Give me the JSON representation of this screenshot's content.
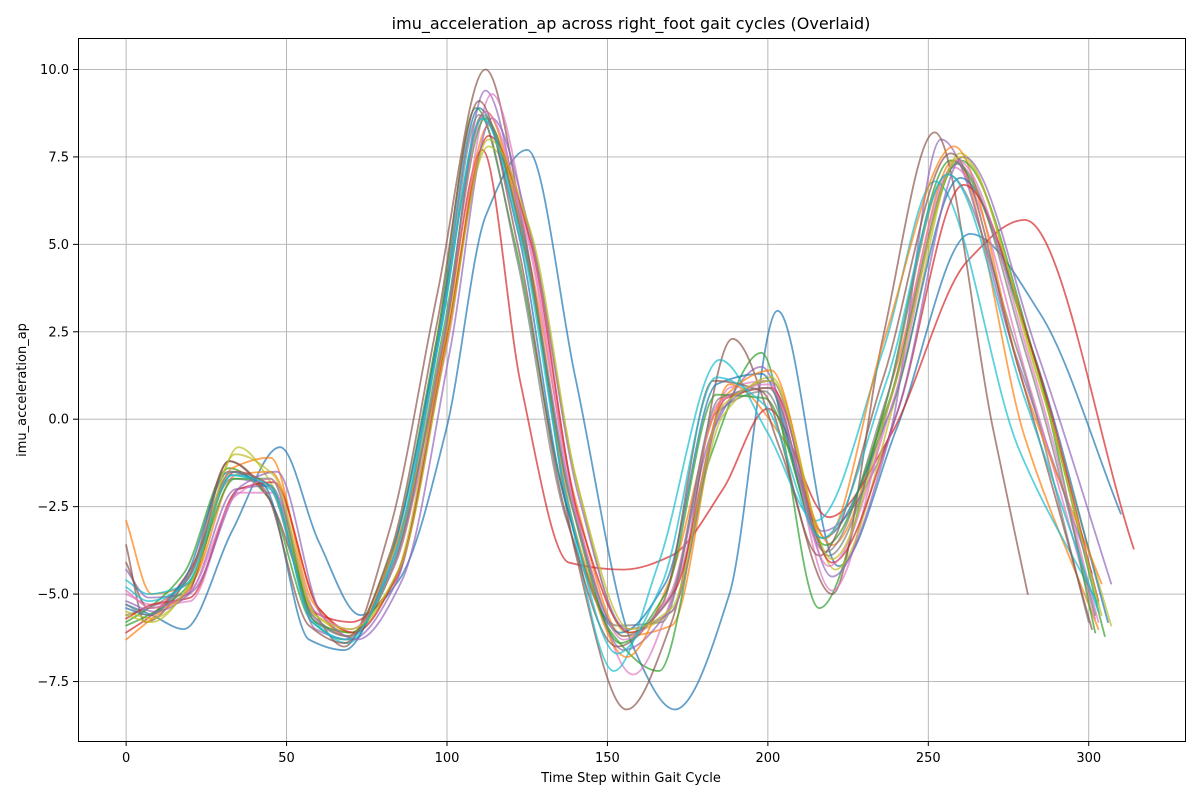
{
  "chart_data": {
    "type": "line",
    "title": "imu_acceleration_ap across right_foot gait cycles (Overlaid)",
    "xlabel": "Time Step within Gait Cycle",
    "ylabel": "imu_acceleration_ap",
    "xlim": [
      -15,
      330
    ],
    "ylim": [
      -9.2,
      10.9
    ],
    "xticks": [
      0,
      50,
      100,
      150,
      200,
      250,
      300
    ],
    "yticks": [
      -7.5,
      -5.0,
      -2.5,
      0.0,
      2.5,
      5.0,
      7.5,
      10.0
    ],
    "xtick_labels": [
      "0",
      "50",
      "100",
      "150",
      "200",
      "250",
      "300"
    ],
    "ytick_labels": [
      "−7.5",
      "−5.0",
      "−2.5",
      "0.0",
      "2.5",
      "5.0",
      "7.5",
      "10.0"
    ],
    "grid": true,
    "legend": "none",
    "series": [
      {
        "color": "#1f77b4",
        "x": [
          0,
          8,
          18,
          33,
          48,
          60,
          73,
          85,
          100,
          112,
          125,
          140,
          158,
          171,
          188,
          203,
          222,
          240,
          263,
          285,
          310
        ],
        "values": [
          -5.3,
          -5.6,
          -6.0,
          -3.2,
          -0.8,
          -3.5,
          -5.6,
          -4.6,
          -0.2,
          5.8,
          7.7,
          1.2,
          -6.5,
          -8.3,
          -5.0,
          3.1,
          -4.2,
          -0.3,
          5.3,
          3.0,
          -2.7
        ]
      },
      {
        "color": "#ff7f0e",
        "x": [
          0,
          8,
          20,
          34,
          45,
          60,
          70,
          85,
          100,
          112,
          125,
          140,
          155,
          170,
          188,
          205,
          220,
          240,
          258,
          280,
          303
        ],
        "values": [
          -2.9,
          -5.0,
          -4.7,
          -1.6,
          -1.5,
          -5.4,
          -6.1,
          -3.5,
          3.9,
          8.8,
          4.8,
          -2.3,
          -6.2,
          -5.9,
          1.0,
          -0.6,
          -3.6,
          1.5,
          7.4,
          -0.5,
          -6.0
        ]
      },
      {
        "color": "#2ca02c",
        "x": [
          0,
          7,
          18,
          32,
          44,
          58,
          68,
          82,
          97,
          109,
          121,
          136,
          152,
          166,
          182,
          198,
          216,
          236,
          257,
          280,
          305
        ],
        "values": [
          -5.8,
          -5.4,
          -4.4,
          -1.4,
          -2.2,
          -5.8,
          -6.3,
          -4.0,
          2.4,
          8.9,
          5.1,
          -2.0,
          -6.2,
          -7.2,
          -1.1,
          1.9,
          -5.4,
          0.2,
          7.4,
          2.6,
          -6.2
        ]
      },
      {
        "color": "#d62728",
        "x": [
          0,
          8,
          20,
          34,
          45,
          58,
          70,
          84,
          99,
          111,
          123,
          138,
          155,
          170,
          186,
          200,
          219,
          238,
          262,
          280,
          314
        ],
        "values": [
          -6.1,
          -5.6,
          -4.3,
          -1.5,
          -1.9,
          -5.5,
          -5.8,
          -4.6,
          2.2,
          7.7,
          1.0,
          -4.1,
          -4.3,
          -3.9,
          -2.0,
          0.3,
          -2.8,
          -0.5,
          4.5,
          5.7,
          -3.7
        ]
      },
      {
        "color": "#9467bd",
        "x": [
          0,
          7,
          19,
          34,
          45,
          59,
          70,
          84,
          99,
          112,
          124,
          139,
          155,
          168,
          183,
          198,
          217,
          237,
          254,
          277,
          301
        ],
        "values": [
          -4.3,
          -5.1,
          -5.0,
          -2.0,
          -1.9,
          -6.0,
          -6.3,
          -4.7,
          2.1,
          9.4,
          5.2,
          -2.3,
          -6.6,
          -5.6,
          -0.3,
          1.5,
          -3.2,
          -0.7,
          8.0,
          1.9,
          -4.4
        ]
      },
      {
        "color": "#8c564b",
        "x": [
          0,
          6,
          20,
          32,
          44,
          58,
          68,
          82,
          97,
          112,
          124,
          140,
          156,
          170,
          189,
          204,
          220,
          236,
          252,
          270,
          281
        ],
        "values": [
          -3.6,
          -5.8,
          -4.4,
          -1.2,
          -2.2,
          -5.4,
          -6.5,
          -3.2,
          3.6,
          10.0,
          5.4,
          -3.8,
          -8.3,
          -5.8,
          2.3,
          -0.9,
          -5.0,
          2.4,
          8.2,
          -0.2,
          -5.0
        ]
      },
      {
        "color": "#e377c2",
        "x": [
          0,
          8,
          20,
          35,
          46,
          59,
          70,
          84,
          100,
          114,
          126,
          142,
          158,
          172,
          188,
          200,
          220,
          238,
          258,
          282,
          302
        ],
        "values": [
          -5.0,
          -5.3,
          -5.2,
          -2.1,
          -2.1,
          -5.7,
          -6.2,
          -3.9,
          2.1,
          9.3,
          5.0,
          -3.3,
          -7.3,
          -4.6,
          0.9,
          1.1,
          -4.9,
          0.5,
          7.2,
          0.8,
          -5.7
        ]
      },
      {
        "color": "#7f7f7f",
        "x": [
          0,
          7,
          19,
          33,
          44,
          58,
          69,
          83,
          98,
          110,
          122,
          137,
          153,
          167,
          184,
          199,
          218,
          237,
          256,
          278,
          300
        ],
        "values": [
          -5.6,
          -5.4,
          -4.6,
          -1.7,
          -1.9,
          -5.6,
          -6.2,
          -4.3,
          2.5,
          8.7,
          4.5,
          -2.8,
          -5.9,
          -5.8,
          0.2,
          0.8,
          -3.8,
          0.6,
          7.0,
          1.9,
          -5.8
        ]
      },
      {
        "color": "#bcbd22",
        "x": [
          0,
          8,
          20,
          35,
          45,
          59,
          70,
          84,
          99,
          113,
          125,
          140,
          156,
          170,
          186,
          201,
          221,
          241,
          260,
          283,
          307
        ],
        "values": [
          -5.5,
          -5.7,
          -4.8,
          -0.8,
          -1.8,
          -5.6,
          -6.1,
          -4.5,
          2.1,
          7.8,
          5.6,
          -1.6,
          -6.1,
          -5.5,
          0.1,
          1.2,
          -4.3,
          1.0,
          7.6,
          1.5,
          -5.9
        ]
      },
      {
        "color": "#17becf",
        "x": [
          0,
          7,
          19,
          33,
          45,
          58,
          69,
          83,
          98,
          111,
          123,
          138,
          152,
          166,
          185,
          200,
          215,
          236,
          252,
          278,
          303
        ],
        "values": [
          -4.6,
          -5.0,
          -4.7,
          -1.6,
          -2.0,
          -5.7,
          -6.4,
          -4.0,
          2.5,
          8.6,
          5.5,
          -2.6,
          -7.2,
          -4.1,
          1.7,
          -0.4,
          -2.9,
          2.0,
          6.8,
          -0.8,
          -5.3
        ]
      },
      {
        "color": "#1f77b4",
        "x": [
          0,
          7,
          18,
          32,
          43,
          57,
          68,
          82,
          97,
          110,
          122,
          137,
          154,
          168,
          184,
          198,
          217,
          238,
          260,
          282,
          306
        ],
        "values": [
          -5.4,
          -5.6,
          -4.6,
          -1.5,
          -1.9,
          -6.3,
          -6.6,
          -4.1,
          2.2,
          8.9,
          5.4,
          -2.4,
          -6.1,
          -4.7,
          1.0,
          1.3,
          -3.4,
          0.2,
          6.9,
          2.1,
          -5.8
        ]
      },
      {
        "color": "#ff7f0e",
        "x": [
          0,
          8,
          20,
          33,
          45,
          58,
          69,
          84,
          100,
          113,
          125,
          140,
          156,
          169,
          186,
          201,
          218,
          236,
          258,
          280,
          304
        ],
        "values": [
          -6.3,
          -5.7,
          -4.8,
          -1.4,
          -1.1,
          -5.2,
          -6.2,
          -3.6,
          2.4,
          8.4,
          4.6,
          -3.2,
          -6.8,
          -4.7,
          0.6,
          1.4,
          -3.4,
          2.2,
          7.8,
          0.9,
          -4.7
        ]
      },
      {
        "color": "#2ca02c",
        "x": [
          0,
          7,
          19,
          34,
          45,
          59,
          70,
          84,
          99,
          112,
          124,
          139,
          154,
          168,
          184,
          199,
          218,
          237,
          260,
          283,
          302
        ],
        "values": [
          -5.9,
          -5.6,
          -4.8,
          -1.7,
          -1.7,
          -5.8,
          -6.1,
          -4.1,
          2.6,
          8.6,
          4.9,
          -2.5,
          -6.4,
          -5.0,
          0.7,
          0.6,
          -3.6,
          0.3,
          7.4,
          1.8,
          -6.1
        ]
      },
      {
        "color": "#d62728",
        "x": [
          0,
          8,
          20,
          35,
          46,
          60,
          71,
          85,
          100,
          113,
          126,
          141,
          157,
          171,
          187,
          201,
          220,
          240,
          261,
          284,
          303
        ],
        "values": [
          -5.7,
          -5.3,
          -5.1,
          -2.0,
          -1.8,
          -5.4,
          -6.1,
          -4.3,
          2.3,
          8.1,
          5.1,
          -2.8,
          -6.1,
          -4.9,
          0.6,
          0.9,
          -4.1,
          0.1,
          6.7,
          1.5,
          -5.2
        ]
      },
      {
        "color": "#9467bd",
        "x": [
          0,
          9,
          21,
          36,
          47,
          61,
          72,
          86,
          101,
          114,
          126,
          141,
          156,
          170,
          186,
          201,
          220,
          241,
          261,
          284,
          307
        ],
        "values": [
          -5.2,
          -5.5,
          -4.9,
          -1.9,
          -1.5,
          -5.6,
          -6.3,
          -4.6,
          2.0,
          8.6,
          5.3,
          -2.2,
          -6.0,
          -5.5,
          0.3,
          1.1,
          -4.5,
          0.4,
          7.5,
          1.9,
          -4.7
        ]
      },
      {
        "color": "#8c564b",
        "x": [
          0,
          7,
          19,
          32,
          43,
          57,
          68,
          82,
          97,
          110,
          122,
          137,
          153,
          167,
          183,
          198,
          216,
          236,
          257,
          278,
          301
        ],
        "values": [
          -4.1,
          -5.4,
          -5.0,
          -1.2,
          -2.0,
          -5.9,
          -6.4,
          -3.9,
          2.8,
          9.1,
          5.0,
          -2.7,
          -6.5,
          -5.3,
          1.1,
          0.8,
          -3.9,
          1.2,
          7.6,
          1.5,
          -6.0
        ]
      },
      {
        "color": "#e377c2",
        "x": [
          0,
          8,
          20,
          34,
          45,
          59,
          70,
          84,
          99,
          112,
          125,
          140,
          155,
          169,
          185,
          200,
          219,
          239,
          259,
          282,
          303
        ],
        "values": [
          -4.9,
          -5.4,
          -4.9,
          -2.2,
          -1.7,
          -5.5,
          -6.0,
          -4.1,
          2.4,
          8.8,
          5.2,
          -2.6,
          -6.3,
          -5.1,
          0.5,
          1.0,
          -4.2,
          0.5,
          7.4,
          1.6,
          -5.8
        ]
      },
      {
        "color": "#7f7f7f",
        "x": [
          0,
          7,
          19,
          33,
          45,
          58,
          69,
          83,
          99,
          111,
          124,
          139,
          155,
          169,
          185,
          200,
          219,
          238,
          259,
          281,
          302
        ],
        "values": [
          -5.3,
          -5.6,
          -4.6,
          -1.5,
          -1.9,
          -5.7,
          -6.2,
          -4.2,
          2.3,
          8.7,
          5.0,
          -2.5,
          -6.2,
          -5.2,
          0.6,
          0.9,
          -3.9,
          0.5,
          7.3,
          1.7,
          -5.6
        ]
      },
      {
        "color": "#bcbd22",
        "x": [
          0,
          8,
          20,
          34,
          46,
          59,
          70,
          85,
          100,
          113,
          126,
          141,
          157,
          170,
          186,
          201,
          220,
          239,
          260,
          283,
          304
        ],
        "values": [
          -5.6,
          -5.8,
          -4.7,
          -1.0,
          -1.6,
          -5.6,
          -6.0,
          -4.3,
          2.2,
          8.0,
          5.4,
          -2.0,
          -6.0,
          -5.4,
          0.4,
          1.1,
          -4.0,
          0.8,
          7.5,
          1.6,
          -5.6
        ]
      },
      {
        "color": "#17becf",
        "x": [
          0,
          7,
          19,
          33,
          45,
          58,
          69,
          83,
          98,
          111,
          123,
          138,
          153,
          167,
          184,
          199,
          217,
          237,
          256,
          280,
          303
        ],
        "values": [
          -4.8,
          -5.2,
          -4.7,
          -1.6,
          -1.9,
          -5.8,
          -6.3,
          -4.1,
          2.5,
          8.6,
          5.2,
          -2.5,
          -6.7,
          -4.7,
          1.2,
          0.4,
          -3.4,
          1.1,
          7.0,
          0.6,
          -5.5
        ]
      }
    ]
  }
}
